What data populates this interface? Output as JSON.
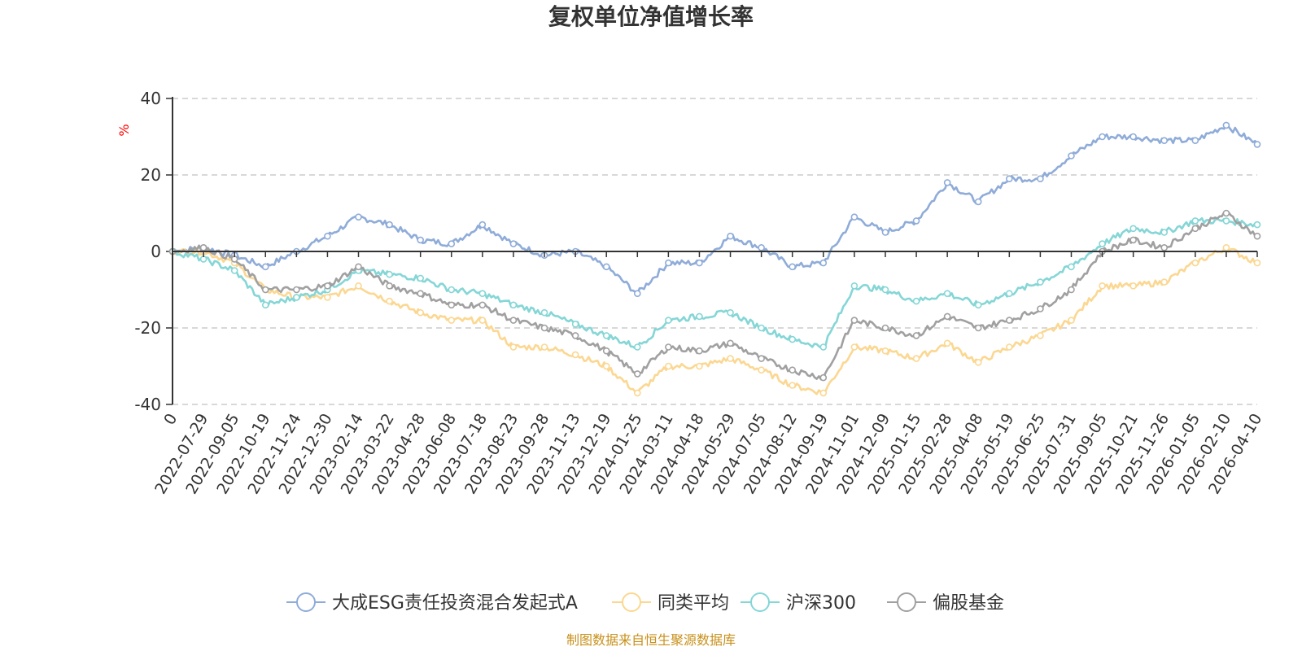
{
  "chart_data": {
    "type": "line",
    "title": "复权单位净值增长率",
    "ylabel": "%",
    "ylim": [
      -40,
      40
    ],
    "yticks": [
      -40,
      -20,
      0,
      20,
      40
    ],
    "grid": true,
    "legend_position": "bottom",
    "x": [
      "0",
      "2022-07-29",
      "2022-09-05",
      "2022-10-19",
      "2022-11-24",
      "2022-12-30",
      "2023-02-14",
      "2023-03-22",
      "2023-04-28",
      "2023-06-08",
      "2023-07-18",
      "2023-08-23",
      "2023-09-28",
      "2023-11-13",
      "2023-12-19",
      "2024-01-25",
      "2024-03-11",
      "2024-04-18",
      "2024-05-29",
      "2024-07-05",
      "2024-08-12",
      "2024-09-19",
      "2024-11-01",
      "2024-12-09",
      "2025-01-15",
      "2025-02-28",
      "2025-04-08",
      "2025-05-19",
      "2025-06-25",
      "2025-07-31",
      "2025-09-05",
      "2025-10-21",
      "2025-11-26",
      "2026-01-05",
      "2026-02-10",
      "2026-04-10"
    ],
    "series": [
      {
        "name": "大成ESG责任投资混合发起式A",
        "color": "#8facd9",
        "values": [
          0,
          1,
          -1,
          -4,
          0,
          4,
          9,
          7,
          3,
          2,
          7,
          2,
          -1,
          0,
          -4,
          -11,
          -3,
          -3,
          4,
          1,
          -4,
          -3,
          9,
          5,
          8,
          18,
          13,
          19,
          19,
          25,
          30,
          30,
          29,
          29,
          33,
          28
        ]
      },
      {
        "name": "同类平均",
        "color": "#fbd791",
        "values": [
          0,
          0,
          -3,
          -10,
          -12,
          -12,
          -9,
          -13,
          -16,
          -18,
          -18,
          -25,
          -25,
          -27,
          -30,
          -37,
          -30,
          -30,
          -28,
          -31,
          -35,
          -37,
          -25,
          -26,
          -28,
          -24,
          -29,
          -25,
          -22,
          -18,
          -9,
          -9,
          -8,
          -3,
          1,
          -3
        ]
      },
      {
        "name": "沪深300",
        "color": "#85d6d6",
        "values": [
          0,
          -2,
          -5,
          -14,
          -12,
          -10,
          -5,
          -6,
          -7,
          -10,
          -11,
          -14,
          -16,
          -19,
          -22,
          -25,
          -18,
          -17,
          -16,
          -20,
          -23,
          -25,
          -9,
          -10,
          -13,
          -11,
          -14,
          -11,
          -8,
          -4,
          2,
          6,
          5,
          8,
          8,
          7
        ]
      },
      {
        "name": "偏股基金",
        "color": "#a0a0a0",
        "values": [
          0,
          1,
          -2,
          -10,
          -10,
          -9,
          -4,
          -9,
          -11,
          -14,
          -14,
          -18,
          -20,
          -22,
          -26,
          -32,
          -25,
          -26,
          -24,
          -28,
          -31,
          -33,
          -18,
          -20,
          -22,
          -17,
          -20,
          -18,
          -15,
          -10,
          0,
          3,
          1,
          6,
          10,
          4
        ]
      }
    ]
  },
  "source_note": "制图数据来自恒生聚源数据库"
}
